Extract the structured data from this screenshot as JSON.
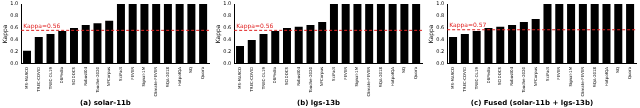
{
  "chart_data": [
    {
      "type": "bar",
      "title": "(a) solar-11b",
      "y_label": "Kappa",
      "categories": [
        "MS-MARCO",
        "TREC-COVID",
        "TREC-DL19",
        "DBPedia",
        "SCIDOCS",
        "Robust04",
        "Touche-2020",
        "NFCorpus",
        "SciFact",
        "FEVER",
        "Signal-1M",
        "Climate-FEVER",
        "FiQA-2018",
        "HotpotQA",
        "NQ",
        "Quora"
      ],
      "values": [
        0.22,
        0.45,
        0.5,
        0.55,
        0.6,
        0.65,
        0.68,
        0.72,
        1,
        1,
        1,
        1,
        1,
        1,
        1,
        1
      ],
      "color": "#000000",
      "ylim": [
        0,
        1
      ],
      "yticks": [
        {
          "value": 0,
          "label": "0.0"
        },
        {
          "value": 0.2,
          "label": "0.2"
        },
        {
          "value": 0.4,
          "label": "0.4"
        },
        {
          "value": 0.6,
          "label": "0.6"
        },
        {
          "value": 0.8,
          "label": "0.8"
        },
        {
          "value": 1,
          "label": "1.0"
        }
      ],
      "annotations": [
        {
          "value": 0.56,
          "label": "Kappa=0.56",
          "color": "#e02020",
          "line_style": "dashed"
        }
      ],
      "grid": false
    },
    {
      "type": "bar",
      "title": "(b) lgs-13b",
      "y_label": "Kappa",
      "categories": [
        "MS-MARCO",
        "TREC-COVID",
        "TREC-DL19",
        "DBPedia",
        "SCIDOCS",
        "Robust04",
        "Touche-2020",
        "NFCorpus",
        "SciFact",
        "FEVER",
        "Signal-1M",
        "Climate-FEVER",
        "FiQA-2018",
        "HotpotQA",
        "NQ",
        "Quora"
      ],
      "values": [
        0.3,
        0.4,
        0.5,
        0.55,
        0.6,
        0.62,
        0.65,
        0.7,
        1,
        1,
        1,
        1,
        1,
        1,
        1,
        1
      ],
      "color": "#000000",
      "ylim": [
        0,
        1
      ],
      "yticks": [
        {
          "value": 0,
          "label": "0.0"
        },
        {
          "value": 0.2,
          "label": "0.2"
        },
        {
          "value": 0.4,
          "label": "0.4"
        },
        {
          "value": 0.6,
          "label": "0.6"
        },
        {
          "value": 0.8,
          "label": "0.8"
        },
        {
          "value": 1,
          "label": "1.0"
        }
      ],
      "annotations": [
        {
          "value": 0.56,
          "label": "Kappa=0.56",
          "color": "#e02020",
          "line_style": "dashed"
        }
      ],
      "grid": false
    },
    {
      "type": "bar",
      "title": "(c) Fused (solar-11b + lgs-13b)",
      "y_label": "Kappa",
      "categories": [
        "MS-MARCO",
        "TREC-COVID",
        "TREC-DL19",
        "DBPedia",
        "SCIDOCS",
        "Robust04",
        "Touche-2020",
        "NFCorpus",
        "SciFact",
        "FEVER",
        "Signal-1M",
        "Climate-FEVER",
        "FiQA-2018",
        "HotpotQA",
        "NQ",
        "Quora"
      ],
      "values": [
        0.45,
        0.5,
        0.55,
        0.6,
        0.62,
        0.65,
        0.7,
        0.75,
        1,
        1,
        1,
        1,
        1,
        1,
        1,
        1
      ],
      "color": "#000000",
      "ylim": [
        0,
        1
      ],
      "yticks": [
        {
          "value": 0,
          "label": "0.0"
        },
        {
          "value": 0.2,
          "label": "0.2"
        },
        {
          "value": 0.4,
          "label": "0.4"
        },
        {
          "value": 0.6,
          "label": "0.6"
        },
        {
          "value": 0.8,
          "label": "0.8"
        },
        {
          "value": 1,
          "label": "1.0"
        }
      ],
      "annotations": [
        {
          "value": 0.57,
          "label": "Kappa=0.57",
          "color": "#e02020",
          "line_style": "dashed"
        }
      ],
      "grid": false
    }
  ]
}
